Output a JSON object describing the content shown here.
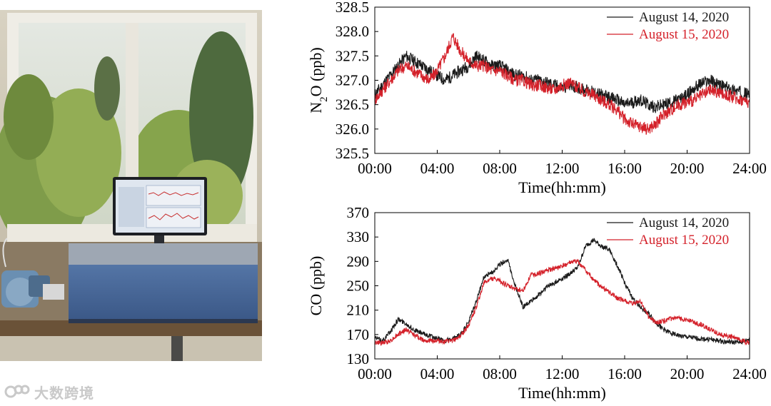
{
  "colors": {
    "series1": "#1a1a1a",
    "series2": "#d4212a"
  },
  "watermark": {
    "text": "大数跨境"
  },
  "chart_data": [
    {
      "type": "line",
      "ylabel": "N2O (ppb)",
      "xlabel": "Time(hh:mm)",
      "xticks": [
        "00:00",
        "04:00",
        "08:00",
        "12:00",
        "16:00",
        "20:00",
        "24:00"
      ],
      "yticks": [
        "325.5",
        "326.0",
        "326.5",
        "327.0",
        "327.5",
        "328.0",
        "328.5"
      ],
      "xlim": [
        0,
        24
      ],
      "ylim": [
        325.5,
        328.5
      ],
      "legend": "top-right",
      "series": [
        {
          "name": "August 14, 2020",
          "x": [
            0,
            0.5,
            1,
            1.5,
            2,
            2.5,
            3,
            3.5,
            4,
            4.5,
            5,
            5.5,
            6,
            6.5,
            7,
            7.5,
            8,
            8.5,
            9,
            9.5,
            10,
            10.5,
            11,
            11.5,
            12,
            12.5,
            13,
            13.5,
            14,
            14.5,
            15,
            15.5,
            16,
            16.5,
            17,
            17.5,
            18,
            18.5,
            19,
            19.5,
            20,
            20.5,
            21,
            21.5,
            22,
            22.5,
            23,
            23.5,
            24
          ],
          "y": [
            326.7,
            326.9,
            327.1,
            327.3,
            327.5,
            327.4,
            327.3,
            327.2,
            327.1,
            327.0,
            327.1,
            327.2,
            327.3,
            327.5,
            327.4,
            327.3,
            327.3,
            327.2,
            327.1,
            327.1,
            327.0,
            327.0,
            326.95,
            326.9,
            326.85,
            326.9,
            326.85,
            326.8,
            326.75,
            326.7,
            326.65,
            326.6,
            326.5,
            326.55,
            326.6,
            326.5,
            326.45,
            326.5,
            326.55,
            326.6,
            326.7,
            326.85,
            326.95,
            327.0,
            326.9,
            326.85,
            326.8,
            326.75,
            326.7
          ]
        },
        {
          "name": "August 15, 2020",
          "x": [
            0,
            0.5,
            1,
            1.5,
            2,
            2.5,
            3,
            3.5,
            4,
            4.5,
            5,
            5.5,
            6,
            6.5,
            7,
            7.5,
            8,
            8.5,
            9,
            9.5,
            10,
            10.5,
            11,
            11.5,
            12,
            12.5,
            13,
            13.5,
            14,
            14.5,
            15,
            15.5,
            16,
            16.5,
            17,
            17.5,
            18,
            18.5,
            19,
            19.5,
            20,
            20.5,
            21,
            21.5,
            22,
            22.5,
            23,
            23.5,
            24
          ],
          "y": [
            326.6,
            326.8,
            327.0,
            327.2,
            327.3,
            327.2,
            327.1,
            327.0,
            327.2,
            327.5,
            327.9,
            327.6,
            327.4,
            327.3,
            327.3,
            327.2,
            327.2,
            327.1,
            327.0,
            327.0,
            326.9,
            326.9,
            326.85,
            326.8,
            326.9,
            326.95,
            326.85,
            326.75,
            326.7,
            326.6,
            326.5,
            326.4,
            326.2,
            326.1,
            326.05,
            326.0,
            326.1,
            326.3,
            326.4,
            326.5,
            326.55,
            326.6,
            326.7,
            326.8,
            326.75,
            326.7,
            326.65,
            326.6,
            326.55
          ]
        }
      ]
    },
    {
      "type": "line",
      "ylabel": "CO (ppb)",
      "xlabel": "Time(hh:mm)",
      "xticks": [
        "00:00",
        "04:00",
        "08:00",
        "12:00",
        "16:00",
        "20:00",
        "24:00"
      ],
      "yticks": [
        "130",
        "170",
        "210",
        "250",
        "290",
        "330",
        "370"
      ],
      "xlim": [
        0,
        24
      ],
      "ylim": [
        130,
        370
      ],
      "legend": "top-right",
      "series": [
        {
          "name": "August 14, 2020",
          "x": [
            0,
            0.5,
            1,
            1.5,
            2,
            2.5,
            3,
            3.5,
            4,
            4.5,
            5,
            5.5,
            6,
            6.5,
            7,
            7.5,
            8,
            8.5,
            9,
            9.5,
            10,
            10.5,
            11,
            11.5,
            12,
            12.5,
            13,
            13.5,
            14,
            14.5,
            15,
            15.5,
            16,
            16.5,
            17,
            17.5,
            18,
            18.5,
            19,
            19.5,
            20,
            20.5,
            21,
            21.5,
            22,
            22.5,
            23,
            23.5,
            24
          ],
          "y": [
            165,
            160,
            175,
            195,
            188,
            178,
            172,
            168,
            163,
            160,
            162,
            170,
            190,
            225,
            265,
            272,
            285,
            293,
            250,
            215,
            225,
            235,
            248,
            255,
            262,
            270,
            280,
            315,
            325,
            315,
            310,
            285,
            255,
            230,
            215,
            205,
            190,
            178,
            172,
            168,
            166,
            164,
            163,
            162,
            160,
            158,
            157,
            158,
            162
          ]
        },
        {
          "name": "August 15, 2020",
          "x": [
            0,
            0.5,
            1,
            1.5,
            2,
            2.5,
            3,
            3.5,
            4,
            4.5,
            5,
            5.5,
            6,
            6.5,
            7,
            7.5,
            8,
            8.5,
            9,
            9.5,
            10,
            10.5,
            11,
            11.5,
            12,
            12.5,
            13,
            13.5,
            14,
            14.5,
            15,
            15.5,
            16,
            16.5,
            17,
            17.5,
            18,
            18.5,
            19,
            19.5,
            20,
            20.5,
            21,
            21.5,
            22,
            22.5,
            23,
            23.5,
            24
          ],
          "y": [
            157,
            156,
            160,
            170,
            178,
            170,
            162,
            160,
            160,
            158,
            160,
            168,
            185,
            215,
            255,
            262,
            258,
            250,
            245,
            242,
            268,
            270,
            275,
            278,
            282,
            288,
            290,
            275,
            260,
            248,
            240,
            230,
            225,
            220,
            225,
            200,
            190,
            192,
            196,
            196,
            195,
            190,
            185,
            178,
            172,
            168,
            165,
            160,
            156
          ]
        }
      ]
    }
  ]
}
